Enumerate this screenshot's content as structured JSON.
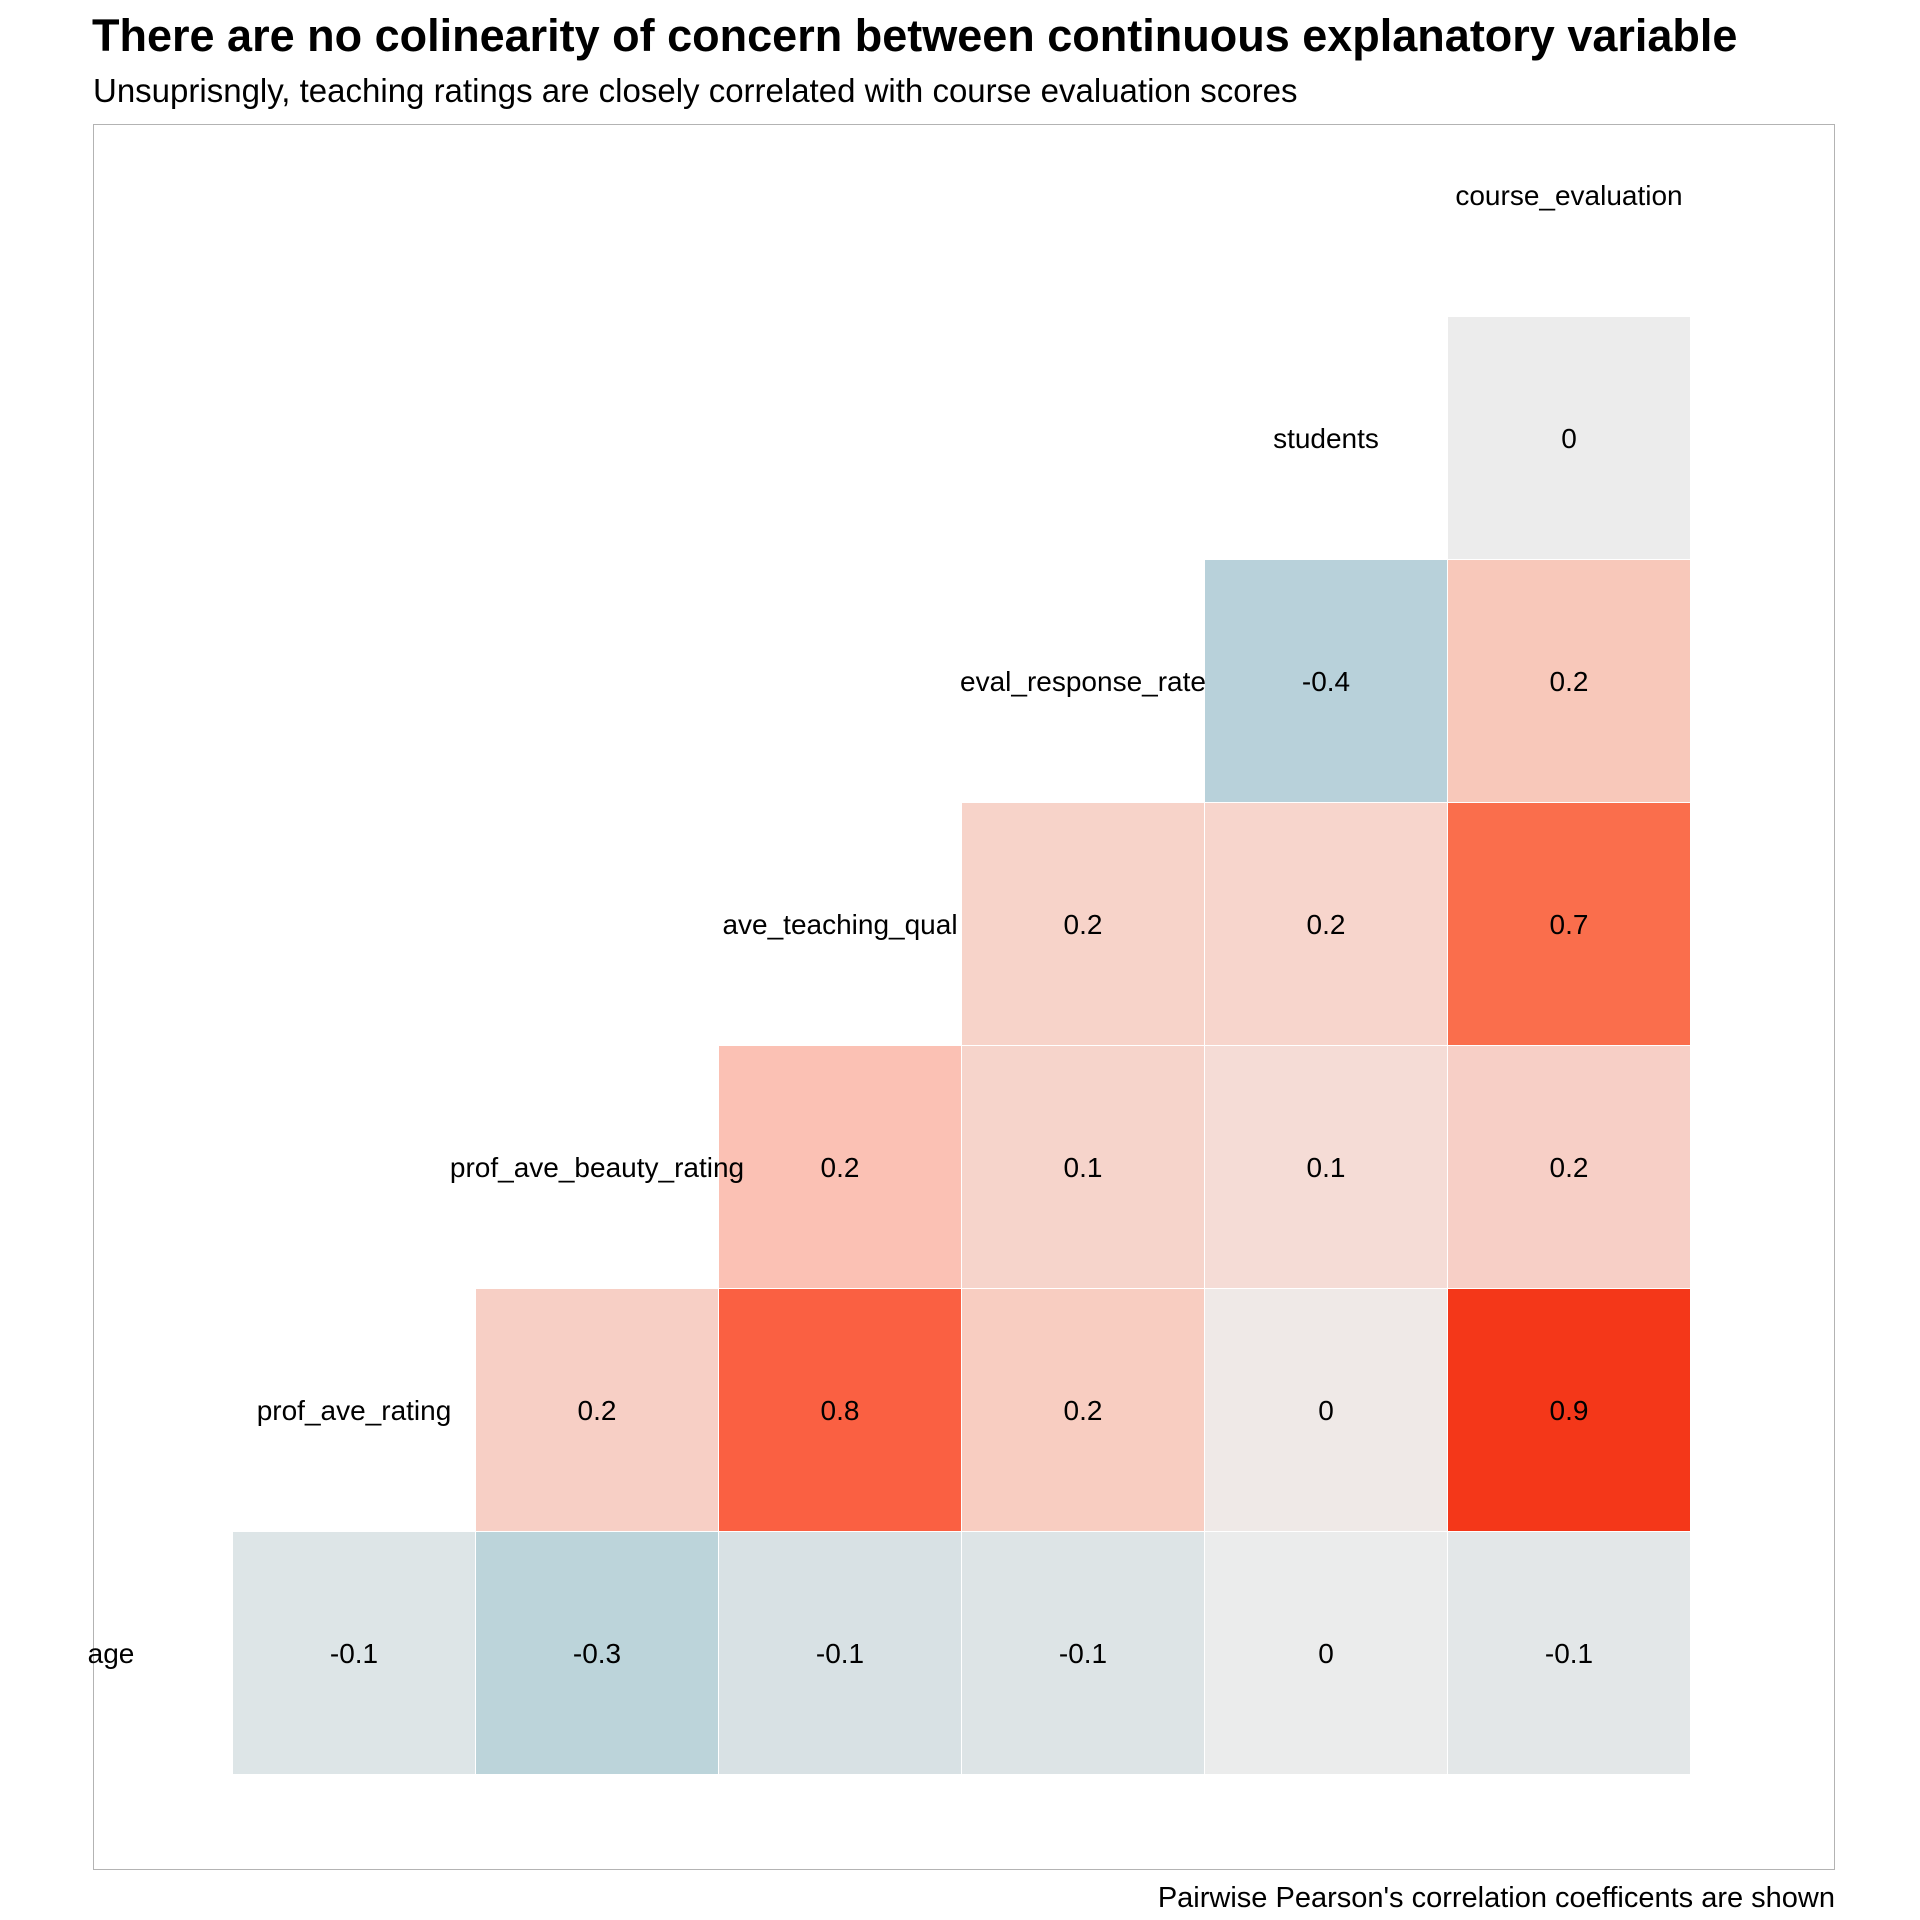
{
  "title": "There are no colinearity of concern between continuous explanatory variable",
  "subtitle": "Unsuprisngly, teaching ratings are closely correlated with course evaluation scores",
  "caption": "Pairwise Pearson's correlation coefficents are shown",
  "chart_data": {
    "type": "heatmap",
    "variables": [
      "age",
      "prof_ave_rating",
      "prof_ave_beauty_rating",
      "ave_teaching_qual",
      "eval_response_rate",
      "students",
      "course_evaluation"
    ],
    "cells": [
      {
        "row": "age",
        "col": "prof_ave_rating",
        "value": -0.1,
        "label": "-0.1",
        "color": "#dde5e7"
      },
      {
        "row": "age",
        "col": "prof_ave_beauty_rating",
        "value": -0.3,
        "label": "-0.3",
        "color": "#bcd4da"
      },
      {
        "row": "age",
        "col": "ave_teaching_qual",
        "value": -0.1,
        "label": "-0.1",
        "color": "#d8e1e4"
      },
      {
        "row": "age",
        "col": "eval_response_rate",
        "value": -0.1,
        "label": "-0.1",
        "color": "#dde4e6"
      },
      {
        "row": "age",
        "col": "students",
        "value": 0,
        "label": "0",
        "color": "#ebecec"
      },
      {
        "row": "age",
        "col": "course_evaluation",
        "value": -0.1,
        "label": "-0.1",
        "color": "#e3e7e8"
      },
      {
        "row": "prof_ave_rating",
        "col": "prof_ave_beauty_rating",
        "value": 0.2,
        "label": "0.2",
        "color": "#f7cfc5"
      },
      {
        "row": "prof_ave_rating",
        "col": "ave_teaching_qual",
        "value": 0.8,
        "label": "0.8",
        "color": "#fa6042"
      },
      {
        "row": "prof_ave_rating",
        "col": "eval_response_rate",
        "value": 0.2,
        "label": "0.2",
        "color": "#f8cdc1"
      },
      {
        "row": "prof_ave_rating",
        "col": "students",
        "value": 0,
        "label": "0",
        "color": "#efe9e7"
      },
      {
        "row": "prof_ave_rating",
        "col": "course_evaluation",
        "value": 0.9,
        "label": "0.9",
        "color": "#f43719"
      },
      {
        "row": "prof_ave_beauty_rating",
        "col": "ave_teaching_qual",
        "value": 0.2,
        "label": "0.2",
        "color": "#fbc1b4"
      },
      {
        "row": "prof_ave_beauty_rating",
        "col": "eval_response_rate",
        "value": 0.1,
        "label": "0.1",
        "color": "#f6d4cb"
      },
      {
        "row": "prof_ave_beauty_rating",
        "col": "students",
        "value": 0.1,
        "label": "0.1",
        "color": "#f5dcd6"
      },
      {
        "row": "prof_ave_beauty_rating",
        "col": "course_evaluation",
        "value": 0.2,
        "label": "0.2",
        "color": "#f7cfc6"
      },
      {
        "row": "ave_teaching_qual",
        "col": "eval_response_rate",
        "value": 0.2,
        "label": "0.2",
        "color": "#f7d3c9"
      },
      {
        "row": "ave_teaching_qual",
        "col": "students",
        "value": 0.2,
        "label": "0.2",
        "color": "#f7d5cc"
      },
      {
        "row": "ave_teaching_qual",
        "col": "course_evaluation",
        "value": 0.7,
        "label": "0.7",
        "color": "#fa6e4c"
      },
      {
        "row": "eval_response_rate",
        "col": "students",
        "value": -0.4,
        "label": "-0.4",
        "color": "#b8d1da"
      },
      {
        "row": "eval_response_rate",
        "col": "course_evaluation",
        "value": 0.2,
        "label": "0.2",
        "color": "#f8c8ba"
      },
      {
        "row": "students",
        "col": "course_evaluation",
        "value": 0,
        "label": "0",
        "color": "#ececec"
      }
    ],
    "color_scale": {
      "negative": "#b8d1da",
      "neutral": "#ececec",
      "positive": "#f43719"
    },
    "grid": false,
    "legend": "none"
  }
}
